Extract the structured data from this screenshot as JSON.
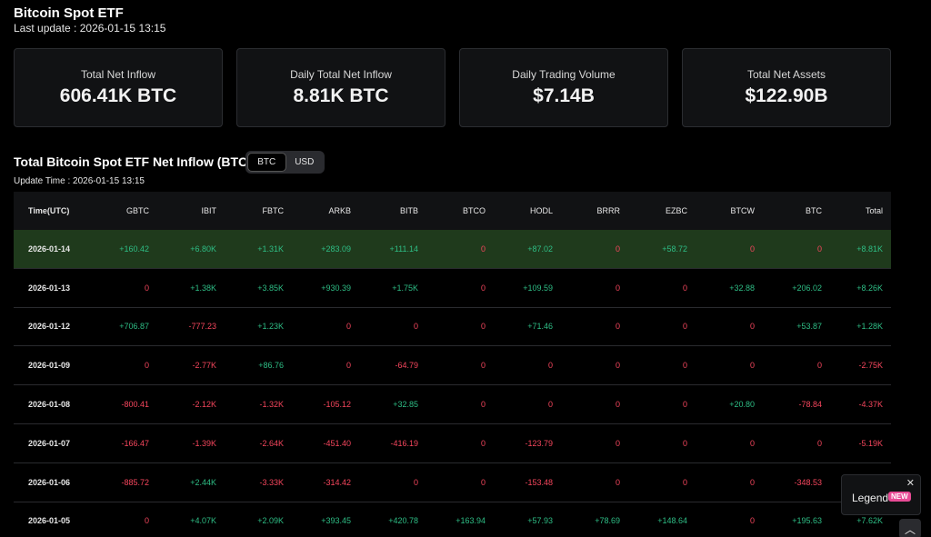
{
  "header": {
    "title": "Bitcoin Spot ETF",
    "last_update": "Last update : 2026-01-15 13:15"
  },
  "cards": [
    {
      "label": "Total Net Inflow",
      "value": "606.41K BTC"
    },
    {
      "label": "Daily Total Net Inflow",
      "value": "8.81K BTC"
    },
    {
      "label": "Daily Trading Volume",
      "value": "$7.14B"
    },
    {
      "label": "Total Net Assets",
      "value": "$122.90B"
    }
  ],
  "section": {
    "title": "Total Bitcoin Spot ETF Net Inflow (BTC)",
    "toggle": [
      "BTC",
      "USD"
    ],
    "active_toggle": "BTC",
    "update_time": "Update Time : 2026-01-15 13:15"
  },
  "table": {
    "columns": [
      "Time(UTC)",
      "GBTC",
      "IBIT",
      "FBTC",
      "ARKB",
      "BITB",
      "BTCO",
      "HODL",
      "BRRR",
      "EZBC",
      "BTCW",
      "BTC",
      "Total"
    ],
    "rows": [
      {
        "highlight": true,
        "cells": [
          "2026-01-14",
          "+160.42",
          "+6.80K",
          "+1.31K",
          "+283.09",
          "+111.14",
          "0",
          "+87.02",
          "0",
          "+58.72",
          "0",
          "0",
          "+8.81K"
        ]
      },
      {
        "highlight": false,
        "cells": [
          "2026-01-13",
          "0",
          "+1.38K",
          "+3.85K",
          "+930.39",
          "+1.75K",
          "0",
          "+109.59",
          "0",
          "0",
          "+32.88",
          "+206.02",
          "+8.26K"
        ]
      },
      {
        "highlight": false,
        "cells": [
          "2026-01-12",
          "+706.87",
          "-777.23",
          "+1.23K",
          "0",
          "0",
          "0",
          "+71.46",
          "0",
          "0",
          "0",
          "+53.87",
          "+1.28K"
        ]
      },
      {
        "highlight": false,
        "cells": [
          "2026-01-09",
          "0",
          "-2.77K",
          "+86.76",
          "0",
          "-64.79",
          "0",
          "0",
          "0",
          "0",
          "0",
          "0",
          "-2.75K"
        ]
      },
      {
        "highlight": false,
        "cells": [
          "2026-01-08",
          "-800.41",
          "-2.12K",
          "-1.32K",
          "-105.12",
          "+32.85",
          "0",
          "0",
          "0",
          "0",
          "+20.80",
          "-78.84",
          "-4.37K"
        ]
      },
      {
        "highlight": false,
        "cells": [
          "2026-01-07",
          "-166.47",
          "-1.39K",
          "-2.64K",
          "-451.40",
          "-416.19",
          "0",
          "-123.79",
          "0",
          "0",
          "0",
          "0",
          "-5.19K"
        ]
      },
      {
        "highlight": false,
        "cells": [
          "2026-01-06",
          "-885.72",
          "+2.44K",
          "-3.33K",
          "-314.42",
          "0",
          "0",
          "-153.48",
          "0",
          "0",
          "0",
          "-348.53",
          ""
        ]
      },
      {
        "highlight": false,
        "cells": [
          "2026-01-05",
          "0",
          "+4.07K",
          "+2.09K",
          "+393.45",
          "+420.78",
          "+163.94",
          "+57.93",
          "+78.69",
          "+148.64",
          "0",
          "+195.63",
          "+7.62K"
        ]
      }
    ]
  },
  "legend": {
    "label": "Legend",
    "badge": "NEW",
    "close": "✕"
  },
  "scroll_top": "︿",
  "colors": {
    "positive": "#2ebd85",
    "negative": "#f6465d",
    "highlight_row": "#1f3a1c"
  }
}
